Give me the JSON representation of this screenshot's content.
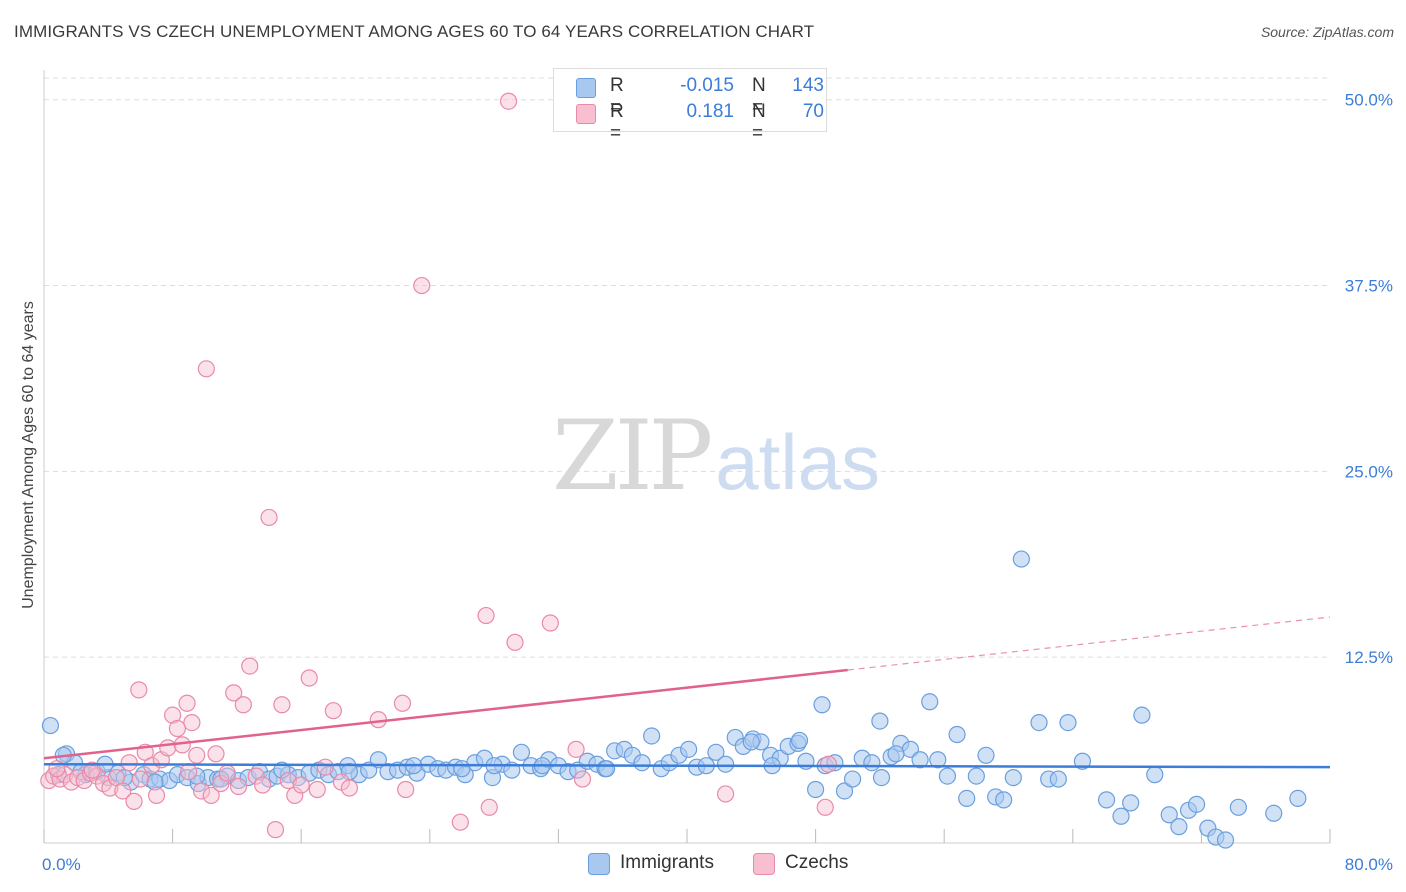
{
  "title": "IMMIGRANTS VS CZECH UNEMPLOYMENT AMONG AGES 60 TO 64 YEARS CORRELATION CHART",
  "source": "Source: ZipAtlas.com",
  "watermark": {
    "part1": "ZIP",
    "part2": "atlas"
  },
  "colors": {
    "immigrants_fill": "#a9c8ef",
    "immigrants_stroke": "#6a9fdf",
    "immigrants_line": "#3b7dd8",
    "czechs_fill": "#f7bfd0",
    "czechs_stroke": "#e98aa8",
    "czechs_line": "#e0628d",
    "value_text": "#3b7dd8",
    "grid": "#dddddd"
  },
  "legend": {
    "rows": [
      {
        "series": "Immigrants",
        "r_label": "R =",
        "r_value": "-0.015",
        "n_label": "N =",
        "n_value": "143"
      },
      {
        "series": "Czechs",
        "r_label": "R =",
        "r_value": "0.181",
        "n_label": "N =",
        "n_value": "70"
      }
    ]
  },
  "chart_data": {
    "type": "scatter",
    "title": "IMMIGRANTS VS CZECH UNEMPLOYMENT AMONG AGES 60 TO 64 YEARS CORRELATION CHART",
    "xlabel": "",
    "ylabel": "Unemployment Among Ages 60 to 64 years",
    "xlim": [
      0,
      80
    ],
    "ylim": [
      0,
      52
    ],
    "x_tick_labels": [
      "0.0%",
      "80.0%"
    ],
    "y_ticks": [
      12.5,
      25.0,
      37.5,
      50.0
    ],
    "y_tick_labels": [
      "12.5%",
      "25.0%",
      "37.5%",
      "50.0%"
    ],
    "grid": true,
    "legend_position": "bottom-center",
    "series": [
      {
        "name": "Immigrants",
        "R": -0.015,
        "N": 143,
        "trend": {
          "x": [
            0,
            80
          ],
          "y": [
            5.3,
            5.1
          ],
          "dashed_after": null
        },
        "points": [
          [
            0.4,
            7.9
          ],
          [
            1.4,
            6.0
          ],
          [
            1.9,
            5.4
          ],
          [
            2.6,
            4.6
          ],
          [
            3.3,
            4.8
          ],
          [
            4.0,
            4.4
          ],
          [
            4.6,
            4.7
          ],
          [
            5.4,
            4.1
          ],
          [
            6.2,
            4.6
          ],
          [
            6.6,
            4.3
          ],
          [
            7.2,
            4.3
          ],
          [
            7.8,
            4.2
          ],
          [
            8.3,
            4.6
          ],
          [
            8.9,
            4.4
          ],
          [
            9.6,
            4.0
          ],
          [
            10.2,
            4.4
          ],
          [
            10.8,
            4.3
          ],
          [
            11.4,
            4.5
          ],
          [
            12.1,
            4.2
          ],
          [
            12.7,
            4.4
          ],
          [
            13.4,
            4.8
          ],
          [
            14.0,
            4.3
          ],
          [
            14.5,
            4.5
          ],
          [
            15.2,
            4.6
          ],
          [
            15.8,
            4.4
          ],
          [
            16.5,
            4.7
          ],
          [
            17.1,
            4.9
          ],
          [
            17.7,
            4.6
          ],
          [
            18.3,
            4.8
          ],
          [
            18.9,
            5.2
          ],
          [
            19.6,
            4.6
          ],
          [
            20.2,
            4.9
          ],
          [
            20.8,
            5.6
          ],
          [
            21.4,
            4.8
          ],
          [
            22.0,
            4.9
          ],
          [
            22.6,
            5.1
          ],
          [
            23.2,
            4.7
          ],
          [
            23.9,
            5.3
          ],
          [
            24.5,
            5.0
          ],
          [
            25.0,
            4.9
          ],
          [
            25.6,
            5.1
          ],
          [
            26.2,
            4.6
          ],
          [
            26.8,
            5.4
          ],
          [
            27.4,
            5.7
          ],
          [
            27.9,
            4.4
          ],
          [
            28.5,
            5.3
          ],
          [
            29.1,
            4.9
          ],
          [
            29.7,
            6.1
          ],
          [
            30.3,
            5.2
          ],
          [
            30.9,
            5.0
          ],
          [
            31.4,
            5.6
          ],
          [
            32.0,
            5.2
          ],
          [
            32.6,
            4.8
          ],
          [
            33.2,
            4.9
          ],
          [
            33.8,
            5.5
          ],
          [
            34.4,
            5.3
          ],
          [
            34.9,
            5.0
          ],
          [
            35.5,
            6.2
          ],
          [
            36.1,
            6.3
          ],
          [
            36.6,
            5.9
          ],
          [
            37.2,
            5.4
          ],
          [
            37.8,
            7.2
          ],
          [
            38.4,
            5.0
          ],
          [
            38.9,
            5.4
          ],
          [
            39.5,
            5.9
          ],
          [
            40.1,
            6.3
          ],
          [
            40.6,
            5.1
          ],
          [
            41.2,
            5.2
          ],
          [
            41.8,
            6.1
          ],
          [
            42.4,
            5.3
          ],
          [
            43.0,
            7.1
          ],
          [
            43.5,
            6.5
          ],
          [
            44.1,
            7.0
          ],
          [
            44.6,
            6.8
          ],
          [
            45.2,
            5.9
          ],
          [
            45.8,
            5.7
          ],
          [
            46.3,
            6.5
          ],
          [
            46.9,
            6.7
          ],
          [
            47.4,
            5.5
          ],
          [
            48.0,
            3.6
          ],
          [
            48.6,
            5.2
          ],
          [
            49.2,
            5.4
          ],
          [
            49.8,
            3.5
          ],
          [
            50.3,
            4.3
          ],
          [
            50.9,
            5.7
          ],
          [
            51.5,
            5.4
          ],
          [
            52.1,
            4.4
          ],
          [
            52.7,
            5.8
          ],
          [
            53.3,
            6.7
          ],
          [
            53.9,
            6.3
          ],
          [
            54.5,
            5.6
          ],
          [
            55.1,
            9.5
          ],
          [
            55.6,
            5.6
          ],
          [
            56.2,
            4.5
          ],
          [
            56.8,
            7.3
          ],
          [
            57.4,
            3.0
          ],
          [
            58.0,
            4.5
          ],
          [
            58.6,
            5.9
          ],
          [
            59.2,
            3.1
          ],
          [
            59.7,
            2.9
          ],
          [
            60.3,
            4.4
          ],
          [
            60.8,
            19.1
          ],
          [
            61.9,
            8.1
          ],
          [
            62.5,
            4.3
          ],
          [
            63.1,
            4.3
          ],
          [
            63.7,
            8.1
          ],
          [
            64.6,
            5.5
          ],
          [
            66.1,
            2.9
          ],
          [
            67.0,
            1.8
          ],
          [
            67.6,
            2.7
          ],
          [
            68.3,
            8.6
          ],
          [
            69.1,
            4.6
          ],
          [
            70.0,
            1.9
          ],
          [
            70.6,
            1.1
          ],
          [
            71.2,
            2.2
          ],
          [
            71.7,
            2.6
          ],
          [
            72.4,
            1.0
          ],
          [
            72.9,
            0.4
          ],
          [
            73.5,
            0.2
          ],
          [
            74.3,
            2.4
          ],
          [
            76.5,
            2.0
          ],
          [
            78.0,
            3.0
          ],
          [
            53.0,
            6.0
          ],
          [
            52.0,
            8.2
          ],
          [
            48.4,
            9.3
          ],
          [
            47.0,
            6.9
          ],
          [
            45.3,
            5.2
          ],
          [
            44.0,
            6.8
          ],
          [
            35.0,
            5.0
          ],
          [
            31.0,
            5.2
          ],
          [
            26.0,
            5.0
          ],
          [
            23.0,
            5.2
          ],
          [
            14.8,
            4.9
          ],
          [
            9.5,
            4.5
          ],
          [
            6.9,
            4.1
          ],
          [
            3.8,
            5.3
          ],
          [
            2.3,
            4.8
          ],
          [
            1.2,
            5.9
          ],
          [
            0.9,
            4.6
          ],
          [
            5.0,
            4.4
          ],
          [
            11.0,
            4.3
          ],
          [
            19.0,
            4.8
          ],
          [
            28.0,
            5.2
          ]
        ]
      },
      {
        "name": "Czechs",
        "R": 0.181,
        "N": 70,
        "trend": {
          "x": [
            0,
            80
          ],
          "y": [
            5.7,
            15.2
          ],
          "solid_until_x": 50
        },
        "points": [
          [
            0.3,
            4.2
          ],
          [
            0.6,
            4.5
          ],
          [
            1.0,
            4.3
          ],
          [
            1.3,
            4.6
          ],
          [
            1.7,
            4.1
          ],
          [
            2.1,
            4.4
          ],
          [
            2.5,
            4.2
          ],
          [
            2.9,
            4.7
          ],
          [
            3.3,
            4.5
          ],
          [
            3.7,
            4.0
          ],
          [
            4.1,
            3.7
          ],
          [
            4.5,
            4.4
          ],
          [
            4.9,
            3.5
          ],
          [
            5.3,
            5.4
          ],
          [
            5.6,
            2.8
          ],
          [
            5.9,
            10.3
          ],
          [
            6.3,
            6.1
          ],
          [
            6.7,
            5.2
          ],
          [
            7.0,
            3.2
          ],
          [
            7.3,
            5.6
          ],
          [
            7.7,
            6.4
          ],
          [
            8.0,
            8.6
          ],
          [
            8.3,
            7.7
          ],
          [
            8.6,
            6.6
          ],
          [
            8.9,
            9.4
          ],
          [
            9.2,
            8.1
          ],
          [
            9.5,
            5.9
          ],
          [
            9.8,
            3.5
          ],
          [
            10.1,
            31.9
          ],
          [
            10.4,
            3.2
          ],
          [
            10.7,
            6.0
          ],
          [
            11.0,
            4.0
          ],
          [
            11.4,
            4.7
          ],
          [
            11.8,
            10.1
          ],
          [
            12.1,
            3.8
          ],
          [
            12.4,
            9.3
          ],
          [
            12.8,
            11.9
          ],
          [
            13.2,
            4.5
          ],
          [
            13.6,
            3.9
          ],
          [
            14.0,
            21.9
          ],
          [
            14.4,
            0.9
          ],
          [
            14.8,
            9.3
          ],
          [
            15.2,
            4.2
          ],
          [
            15.6,
            3.2
          ],
          [
            16.0,
            3.9
          ],
          [
            16.5,
            11.1
          ],
          [
            17.0,
            3.6
          ],
          [
            17.5,
            5.1
          ],
          [
            18.0,
            8.9
          ],
          [
            18.5,
            4.1
          ],
          [
            19.0,
            3.7
          ],
          [
            20.8,
            8.3
          ],
          [
            22.3,
            9.4
          ],
          [
            22.5,
            3.6
          ],
          [
            23.5,
            37.5
          ],
          [
            25.9,
            1.4
          ],
          [
            27.5,
            15.3
          ],
          [
            27.7,
            2.4
          ],
          [
            28.9,
            49.9
          ],
          [
            29.3,
            13.5
          ],
          [
            31.5,
            14.8
          ],
          [
            33.1,
            6.3
          ],
          [
            33.5,
            4.3
          ],
          [
            42.4,
            3.3
          ],
          [
            48.6,
            2.4
          ],
          [
            48.8,
            5.3
          ],
          [
            0.8,
            5.0
          ],
          [
            3.0,
            4.9
          ],
          [
            6.0,
            4.3
          ],
          [
            9.0,
            4.8
          ]
        ]
      }
    ]
  },
  "bottom_legend": [
    {
      "label": "Immigrants"
    },
    {
      "label": "Czechs"
    }
  ]
}
